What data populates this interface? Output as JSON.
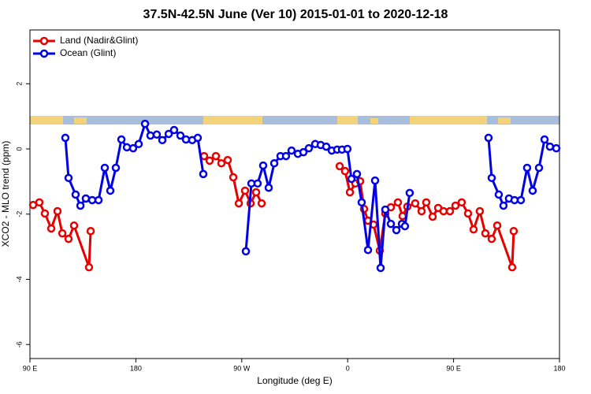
{
  "chart_data": {
    "type": "line",
    "title": "37.5N-42.5N June (Ver 10)   2015-01-01 to 2020-12-18",
    "xlabel": "Longitude (deg E)",
    "ylabel": "XCO2 - MLO trend (ppm)",
    "xlim": [
      90,
      540
    ],
    "ylim": [
      -6.43,
      3.65
    ],
    "xticks": [
      {
        "value": 90,
        "label": "90 E"
      },
      180,
      {
        "value": 270,
        "label": "90 W"
      },
      {
        "value": 360,
        "label": "0"
      },
      {
        "value": 450,
        "label": "90 E"
      },
      {
        "value": 540,
        "label": "180"
      }
    ],
    "yticks": [
      -6,
      -4,
      -2,
      0,
      2
    ],
    "legend": "topleft",
    "series": [
      {
        "name": "Land (Nadir&Glint)",
        "color": "#e60000",
        "x": [
          92.7,
          98.0,
          102.7,
          108.1,
          113.4,
          117.5,
          122.8,
          127.5,
          140.2,
          141.6,
          null,
          238.0,
          242.7,
          248.0,
          252.7,
          258.1,
          262.8,
          267.5,
          272.8,
          277.5,
          282.2,
          286.9,
          null,
          353.2,
          357.8,
          361.9,
          366.5,
          370.6,
          373.9,
          377.3,
          382.0,
          387.3,
          392.0,
          396.7,
          402.7,
          406.7,
          410.7,
          417.4,
          422.8,
          426.8,
          432.2,
          436.9,
          441.5,
          446.9,
          451.6,
          456.9,
          462.3,
          467.0,
          472.3,
          477.0,
          482.4,
          487.1,
          499.8,
          501.1
        ],
        "values": [
          -1.72,
          -1.64,
          -1.98,
          -2.44,
          -1.91,
          -2.59,
          -2.76,
          -2.35,
          -3.63,
          -2.52,
          null,
          -0.22,
          -0.36,
          -0.22,
          -0.44,
          -0.34,
          -0.87,
          -1.67,
          -1.28,
          -1.67,
          -1.33,
          -1.67,
          null,
          -0.53,
          -0.68,
          -1.33,
          -1.06,
          -0.99,
          -1.84,
          -2.2,
          -2.32,
          -3.12,
          -1.98,
          -1.79,
          -1.64,
          -2.06,
          -1.77,
          -1.67,
          -1.91,
          -1.64,
          -2.08,
          -1.81,
          -1.91,
          -1.91,
          -1.74,
          -1.64,
          -1.98,
          -2.47,
          -1.91,
          -2.59,
          -2.76,
          -2.35,
          -3.63,
          -2.52
        ]
      },
      {
        "name": "Ocean (Glint)",
        "color": "#0000e6",
        "x": [
          120.1,
          122.8,
          128.8,
          132.9,
          137.5,
          142.9,
          148.3,
          153.6,
          158.3,
          163.0,
          167.7,
          172.4,
          177.7,
          182.4,
          187.8,
          192.4,
          197.8,
          202.5,
          207.9,
          212.5,
          217.9,
          222.6,
          227.9,
          232.6,
          237.3,
          null,
          273.5,
          278.2,
          283.5,
          288.2,
          292.9,
          297.6,
          302.9,
          307.6,
          312.3,
          317.7,
          322.4,
          327.0,
          332.4,
          337.1,
          341.8,
          346.5,
          351.1,
          355.2,
          359.8,
          363.2,
          367.9,
          371.9,
          377.3,
          383.3,
          388.0,
          392.0,
          396.7,
          401.4,
          406.1,
          408.7,
          412.7,
          null,
          479.7,
          482.4,
          488.4,
          492.4,
          497.1,
          501.8,
          507.2,
          512.5,
          517.2,
          522.6,
          527.3,
          531.9,
          537.3
        ],
        "values": [
          0.34,
          -0.89,
          -1.4,
          -1.74,
          -1.52,
          -1.57,
          -1.57,
          -0.58,
          -1.28,
          -0.58,
          0.29,
          0.05,
          0.02,
          0.15,
          0.77,
          0.41,
          0.44,
          0.27,
          0.46,
          0.58,
          0.41,
          0.29,
          0.27,
          0.34,
          -0.77,
          null,
          -3.14,
          -1.06,
          -1.06,
          -0.51,
          -1.19,
          -0.44,
          -0.22,
          -0.22,
          -0.05,
          -0.15,
          -0.1,
          0.02,
          0.15,
          0.12,
          0.07,
          -0.05,
          -0.02,
          -0.02,
          0,
          -0.92,
          -0.77,
          -1.64,
          -3.1,
          -0.97,
          -3.65,
          -1.86,
          -2.3,
          -2.49,
          -2.3,
          -2.37,
          -1.35,
          null,
          0.34,
          -0.89,
          -1.4,
          -1.74,
          -1.52,
          -1.57,
          -1.57,
          -0.58,
          -1.28,
          -0.58,
          0.29,
          0.07,
          0.02
        ]
      }
    ]
  }
}
